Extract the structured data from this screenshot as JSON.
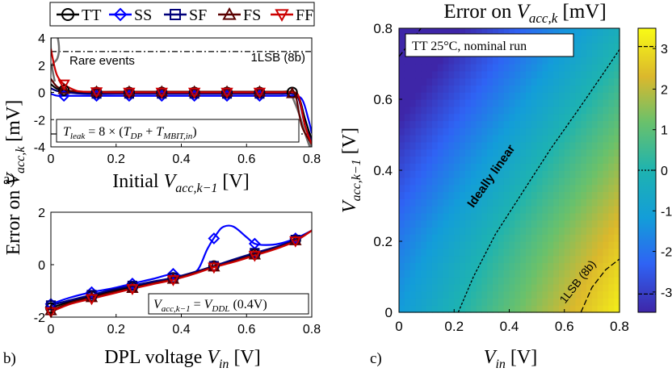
{
  "figure": {
    "panel_a_label": "a)",
    "panel_b_label": "b)",
    "panel_c_label": "c)",
    "shared_ylabel_prefix": "Error on ",
    "shared_ylabel_var": "V",
    "shared_ylabel_sub": "acc,k",
    "shared_ylabel_unit": " [mV]"
  },
  "legend": [
    {
      "name": "TT",
      "marker": "circle",
      "color": "#000000"
    },
    {
      "name": "SS",
      "marker": "diamond",
      "color": "#0000ff"
    },
    {
      "name": "SF",
      "marker": "square",
      "color": "#00007a"
    },
    {
      "name": "FS",
      "marker": "triangle-up",
      "color": "#5a0000"
    },
    {
      "name": "FF",
      "marker": "triangle-down",
      "color": "#cc0000"
    }
  ],
  "chart_data": [
    {
      "id": "a",
      "type": "line",
      "xlabel_prefix": "Initial ",
      "xlabel_var": "V",
      "xlabel_sub": "acc,k−1",
      "xlabel_unit": " [V]",
      "xlim": [
        0,
        0.8
      ],
      "ylim": [
        -4,
        4
      ],
      "xticks": [
        "0",
        "0.2",
        "0.4",
        "0.6",
        "0.8"
      ],
      "yticks": [
        "4",
        "2",
        "0",
        "-2",
        "-4"
      ],
      "hlines": [
        {
          "y": 3.0,
          "label": "1LSB (8b)"
        },
        {
          "y": -3.05,
          "label": ""
        }
      ],
      "annotation_rare": "Rare events",
      "annotation_box": "T_leak = 8 × (T_DP + T_MBIT,in)",
      "annotation_box_parts": {
        "lhs": "T",
        "lhs_sub": "leak",
        "eq": " = 8 × (",
        "a": "T",
        "a_sub": "DP",
        "plus": " + ",
        "b": "T",
        "b_sub": "MBIT,in",
        "close": ")"
      },
      "series": [
        {
          "name": "TT",
          "x": [
            0,
            0.02,
            0.05,
            0.1,
            0.2,
            0.3,
            0.4,
            0.5,
            0.6,
            0.7,
            0.74,
            0.76,
            0.78,
            0.8
          ],
          "y": [
            0.6,
            0.25,
            0.1,
            0.0,
            0.0,
            0.0,
            0.0,
            0.0,
            0.0,
            0.0,
            0.0,
            -0.3,
            -2.0,
            -3.5
          ]
        },
        {
          "name": "SS",
          "x": [
            0,
            0.02,
            0.05,
            0.1,
            0.2,
            0.3,
            0.4,
            0.5,
            0.6,
            0.7,
            0.74,
            0.77,
            0.79,
            0.8
          ],
          "y": [
            -0.1,
            -0.25,
            -0.25,
            -0.25,
            -0.25,
            -0.25,
            -0.25,
            -0.25,
            -0.25,
            -0.25,
            -0.25,
            -0.5,
            -2.0,
            -3.0
          ]
        },
        {
          "name": "SF",
          "x": [
            0,
            0.02,
            0.05,
            0.1,
            0.2,
            0.3,
            0.4,
            0.5,
            0.6,
            0.7,
            0.74,
            0.76,
            0.78,
            0.8
          ],
          "y": [
            0.3,
            0.1,
            0.0,
            -0.1,
            -0.1,
            -0.1,
            -0.1,
            -0.1,
            -0.1,
            -0.1,
            -0.1,
            -0.5,
            -2.5,
            -3.6
          ]
        },
        {
          "name": "FS",
          "x": [
            0,
            0.02,
            0.05,
            0.1,
            0.2,
            0.3,
            0.4,
            0.5,
            0.6,
            0.7,
            0.73,
            0.75,
            0.77,
            0.8
          ],
          "y": [
            1.0,
            0.4,
            0.15,
            0.05,
            0.05,
            0.05,
            0.05,
            0.05,
            0.05,
            0.05,
            0.05,
            -0.2,
            -2.5,
            -3.8
          ]
        },
        {
          "name": "FF",
          "x": [
            0,
            0.01,
            0.02,
            0.04,
            0.07,
            0.1,
            0.2,
            0.3,
            0.4,
            0.5,
            0.6,
            0.7,
            0.74,
            0.76,
            0.78,
            0.8
          ],
          "y": [
            3.2,
            2.0,
            1.2,
            0.6,
            0.2,
            0.05,
            0.0,
            0.0,
            0.0,
            0.0,
            0.0,
            0.0,
            0.0,
            -0.3,
            -2.5,
            -3.8
          ]
        }
      ],
      "marker_x": {
        "TT": [
          0.04,
          0.14,
          0.24,
          0.34,
          0.44,
          0.54,
          0.64,
          0.74
        ],
        "SS": [
          0.04,
          0.14,
          0.24,
          0.34,
          0.44,
          0.54,
          0.64
        ],
        "SF": [
          0.14,
          0.24,
          0.34,
          0.44,
          0.54,
          0.64
        ],
        "FS": [
          0.04,
          0.14,
          0.24,
          0.34,
          0.44,
          0.54,
          0.64,
          0.74
        ],
        "FF": [
          0.04,
          0.14,
          0.24,
          0.34,
          0.44,
          0.54,
          0.64
        ]
      },
      "rare_event": {
        "x": [
          0.0,
          0.0,
          0.01,
          0.02,
          0.025,
          0.02,
          0.01,
          0.004,
          0.006,
          0.012
        ],
        "y": [
          3.0,
          4.0,
          4.3,
          4.1,
          3.2,
          2.5,
          2.2,
          2.0,
          1.5,
          0.8
        ],
        "color": "#707070"
      },
      "rare_event_right": {
        "x": [
          0.74,
          0.76,
          0.785,
          0.8,
          0.795
        ],
        "y": [
          -0.3,
          -1.5,
          -3.4,
          -4.3,
          -3.6
        ],
        "color": "#707070"
      }
    },
    {
      "id": "b",
      "type": "line",
      "xlabel_prefix": "DPL voltage ",
      "xlabel_var": "V",
      "xlabel_sub": "in",
      "xlabel_unit": " [V]",
      "xlim": [
        0,
        0.8
      ],
      "ylim": [
        -2,
        2
      ],
      "xticks": [
        "0",
        "0.2",
        "0.4",
        "0.6",
        "0.8"
      ],
      "yticks": [
        "2",
        "0",
        "-2"
      ],
      "annotation_box": "V_acc,k−1 = V_DDL (0.4V)",
      "annotation_box_parts": {
        "lhs": "V",
        "lhs_sub": "acc,k−1",
        "eq": " = ",
        "rhs": "V",
        "rhs_sub": "DDL",
        "tail": " (0.4V)"
      },
      "series": [
        {
          "name": "TT",
          "x": [
            0,
            0.06,
            0.125,
            0.19,
            0.25,
            0.31,
            0.375,
            0.44,
            0.5,
            0.56,
            0.625,
            0.69,
            0.75,
            0.8
          ],
          "y": [
            -1.65,
            -1.4,
            -1.2,
            -1.0,
            -0.85,
            -0.7,
            -0.5,
            -0.3,
            -0.05,
            0.15,
            0.4,
            0.65,
            0.95,
            1.3
          ]
        },
        {
          "name": "SS",
          "x": [
            0,
            0.06,
            0.125,
            0.19,
            0.25,
            0.31,
            0.375,
            0.41,
            0.45,
            0.48,
            0.51,
            0.53,
            0.56,
            0.6,
            0.625,
            0.66,
            0.7,
            0.75,
            0.8
          ],
          "y": [
            -1.5,
            -1.25,
            -1.05,
            -0.9,
            -0.72,
            -0.55,
            -0.35,
            -0.45,
            -0.2,
            0.6,
            1.2,
            1.45,
            1.45,
            1.05,
            0.8,
            0.75,
            0.8,
            1.0,
            1.3
          ]
        },
        {
          "name": "SF",
          "x": [
            0,
            0.06,
            0.125,
            0.19,
            0.25,
            0.31,
            0.375,
            0.44,
            0.5,
            0.56,
            0.625,
            0.69,
            0.75,
            0.8
          ],
          "y": [
            -1.55,
            -1.35,
            -1.15,
            -0.95,
            -0.8,
            -0.65,
            -0.5,
            -0.28,
            -0.05,
            0.2,
            0.45,
            0.68,
            0.95,
            1.3
          ]
        },
        {
          "name": "FS",
          "x": [
            0,
            0.06,
            0.125,
            0.19,
            0.25,
            0.31,
            0.375,
            0.44,
            0.5,
            0.56,
            0.625,
            0.69,
            0.75,
            0.8
          ],
          "y": [
            -1.75,
            -1.45,
            -1.25,
            -1.05,
            -0.9,
            -0.72,
            -0.55,
            -0.32,
            -0.08,
            0.12,
            0.38,
            0.62,
            0.92,
            1.3
          ]
        },
        {
          "name": "FF",
          "x": [
            0,
            0.06,
            0.125,
            0.19,
            0.25,
            0.31,
            0.375,
            0.44,
            0.5,
            0.56,
            0.625,
            0.69,
            0.75,
            0.8
          ],
          "y": [
            -1.8,
            -1.5,
            -1.3,
            -1.1,
            -0.92,
            -0.75,
            -0.58,
            -0.35,
            -0.1,
            0.1,
            0.35,
            0.6,
            0.9,
            1.3
          ]
        }
      ],
      "marker_x": {
        "TT": [
          0,
          0.125,
          0.25,
          0.375,
          0.5,
          0.625,
          0.75
        ],
        "SS": [
          0,
          0.125,
          0.25,
          0.375,
          0.5,
          0.625,
          0.75
        ],
        "SF": [
          0,
          0.125,
          0.25,
          0.375,
          0.5,
          0.625,
          0.75
        ],
        "FS": [
          0,
          0.125,
          0.25,
          0.375,
          0.5,
          0.625,
          0.75
        ],
        "FF": [
          0,
          0.125,
          0.25,
          0.375,
          0.5,
          0.625,
          0.75
        ]
      }
    },
    {
      "id": "c",
      "type": "heatmap",
      "title_prefix": "Error on ",
      "title_var": "V",
      "title_sub": "acc,k",
      "title_unit": " [mV]",
      "xlabel_var": "V",
      "xlabel_sub": "in",
      "xlabel_unit": " [V]",
      "ylabel_var": "V",
      "ylabel_sub": "acc,k−1",
      "ylabel_unit": " [V]",
      "xlim": [
        0,
        0.8
      ],
      "ylim": [
        0,
        0.8
      ],
      "xticks": [
        "0",
        "0.2",
        "0.4",
        "0.6",
        "0.8"
      ],
      "yticks": [
        "0.8",
        "0.6",
        "0.4",
        "0.2",
        "0"
      ],
      "colorbar_range": [
        -3.5,
        3.5
      ],
      "colorbar_ticks": [
        "3",
        "2",
        "1",
        "0",
        "-1",
        "-2",
        "-3"
      ],
      "colorbar_dashed_ticks": [
        3.05,
        0.0,
        -3.05
      ],
      "annotation_box": "TT 25°C, nominal run",
      "contours": [
        {
          "label": "Ideally linear",
          "value": 0.0,
          "x": [
            0.215,
            0.27,
            0.35,
            0.45,
            0.55,
            0.65,
            0.73,
            0.8
          ],
          "y": [
            0.0,
            0.1,
            0.22,
            0.34,
            0.46,
            0.57,
            0.66,
            0.74
          ]
        },
        {
          "label": "1LSB (8b)",
          "value": 3.0,
          "x": [
            0.66,
            0.7,
            0.75,
            0.8
          ],
          "y": [
            0.0,
            0.07,
            0.12,
            0.15
          ]
        },
        {
          "label": "",
          "value": -3.0,
          "x": [
            0.0,
            0.04,
            0.08
          ],
          "y": [
            0.72,
            0.76,
            0.8
          ]
        }
      ]
    }
  ]
}
